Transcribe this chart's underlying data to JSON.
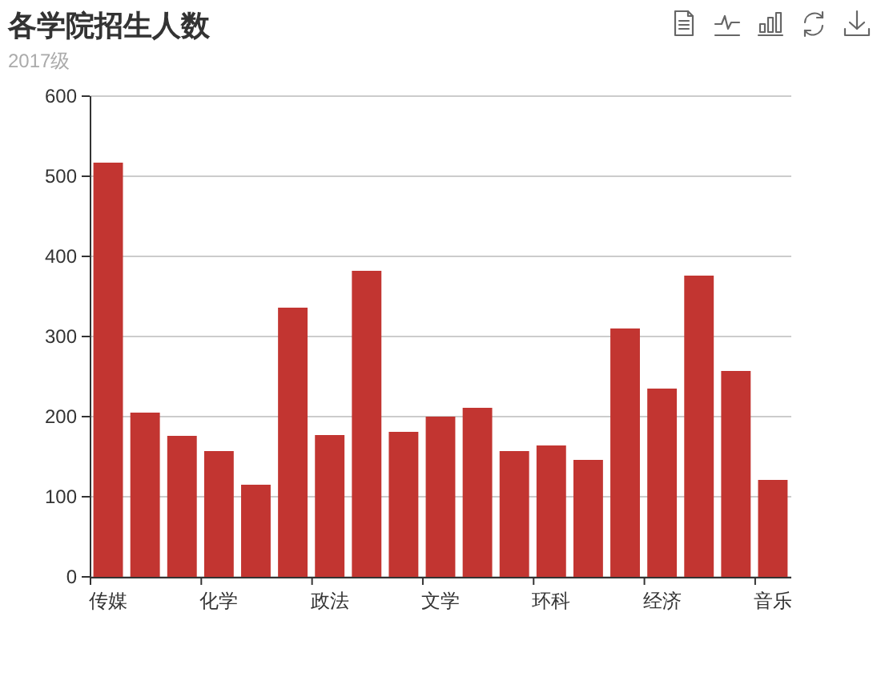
{
  "chart_data": {
    "type": "bar",
    "title": "各学院招生人数",
    "subtitle": "2017级",
    "categories": [
      "传媒",
      null,
      null,
      "化学",
      null,
      null,
      "政法",
      null,
      null,
      "文学",
      null,
      null,
      "环科",
      null,
      null,
      "经济",
      null,
      null,
      "音乐"
    ],
    "values": [
      517,
      205,
      176,
      157,
      115,
      336,
      177,
      382,
      181,
      200,
      211,
      157,
      164,
      146,
      310,
      235,
      376,
      257,
      121
    ],
    "color": "#c23531",
    "ylim": [
      0,
      600
    ],
    "yticks": [
      0,
      100,
      200,
      300,
      400,
      500,
      600
    ],
    "grid": "y"
  }
}
